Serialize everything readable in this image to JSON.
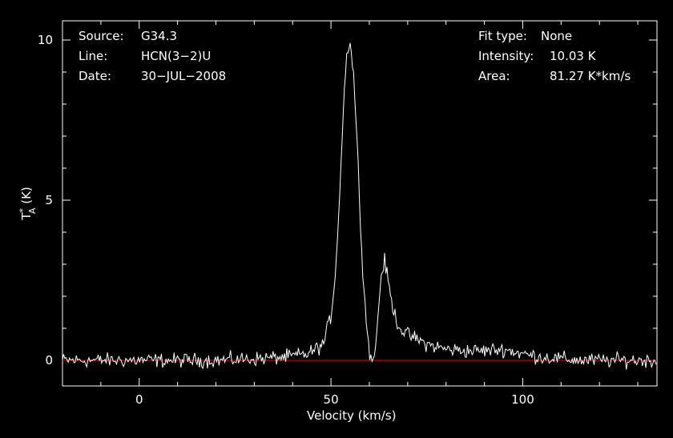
{
  "header": {
    "left": [
      {
        "key": "Source:",
        "value": "G34.3"
      },
      {
        "key": "Line:",
        "value": "HCN(3−2)U"
      },
      {
        "key": "Date:",
        "value": "30−JUL−2008"
      }
    ],
    "right": [
      {
        "key": "Fit type:",
        "value": "None"
      },
      {
        "key": "Intensity:",
        "value": "10.03 K"
      },
      {
        "key": "Area:",
        "value": "81.27 K*km/s"
      }
    ]
  },
  "colors": {
    "background": "#000000",
    "axes": "#ffffff",
    "spectrum": "#ffffff",
    "baseline": "#ff0000"
  },
  "chart_data": {
    "type": "line",
    "xlabel": "Velocity (km/s)",
    "ylabel": "T*A (K)",
    "xlim": [
      -20,
      135
    ],
    "ylim": [
      -0.8,
      10.6
    ],
    "xticks": [
      0,
      50,
      100
    ],
    "yticks": [
      0,
      5,
      10
    ],
    "grid": false,
    "baseline_y": 0,
    "series": [
      {
        "x": [
          -20,
          -10,
          0,
          10,
          20,
          30,
          38,
          44,
          48,
          50,
          51,
          52,
          53,
          54,
          55,
          56,
          57,
          58,
          59,
          60,
          61,
          62,
          63,
          64,
          65,
          66,
          67,
          68,
          70,
          75,
          80,
          85,
          90,
          95,
          100,
          105,
          110,
          115,
          120,
          125,
          130,
          135
        ],
        "values": [
          0.0,
          0.0,
          0.0,
          0.0,
          0.0,
          0.05,
          0.1,
          0.2,
          0.5,
          1.4,
          2.5,
          4.5,
          7.2,
          9.6,
          9.9,
          8.8,
          6.3,
          3.5,
          1.5,
          0.3,
          -0.1,
          0.9,
          2.6,
          3.1,
          2.4,
          1.7,
          1.3,
          1.0,
          0.8,
          0.5,
          0.35,
          0.3,
          0.3,
          0.35,
          0.2,
          0.1,
          0.05,
          0.0,
          0.0,
          0.0,
          0.0,
          0.0
        ]
      }
    ]
  }
}
